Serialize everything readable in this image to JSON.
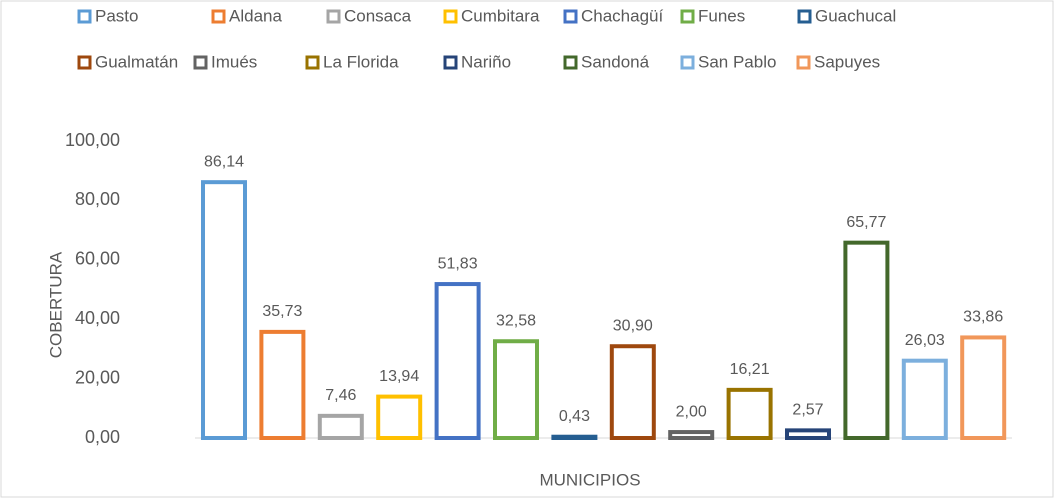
{
  "chart_data": {
    "type": "bar",
    "xlabel": "MUNICIPIOS",
    "ylabel": "COBERTURA",
    "ylim": [
      0,
      100
    ],
    "yticks": [
      {
        "value": 0,
        "label": "0,00"
      },
      {
        "value": 20,
        "label": "20,00"
      },
      {
        "value": 40,
        "label": "40,00"
      },
      {
        "value": 60,
        "label": "60,00"
      },
      {
        "value": 80,
        "label": "80,00"
      },
      {
        "value": 100,
        "label": "100,00"
      }
    ],
    "grid": false,
    "legend": "top",
    "series": [
      {
        "name": "Pasto",
        "color": "#5b9bd5",
        "values": [
          86.14
        ],
        "value_labels": [
          "86,14"
        ]
      },
      {
        "name": "Aldana",
        "color": "#ed7d31",
        "values": [
          35.73
        ],
        "value_labels": [
          "35,73"
        ]
      },
      {
        "name": "Consaca",
        "color": "#a5a5a5",
        "values": [
          7.46
        ],
        "value_labels": [
          "7,46"
        ]
      },
      {
        "name": "Cumbitara",
        "color": "#ffc000",
        "values": [
          13.94
        ],
        "value_labels": [
          "13,94"
        ]
      },
      {
        "name": "Chachagüí",
        "color": "#4472c4",
        "values": [
          51.83
        ],
        "value_labels": [
          "51,83"
        ]
      },
      {
        "name": "Funes",
        "color": "#70ad47",
        "values": [
          32.58
        ],
        "value_labels": [
          "32,58"
        ]
      },
      {
        "name": "Guachucal",
        "color": "#255e91",
        "values": [
          0.43
        ],
        "value_labels": [
          "0,43"
        ]
      },
      {
        "name": "Gualmatán",
        "color": "#9e480e",
        "values": [
          30.9
        ],
        "value_labels": [
          "30,90"
        ]
      },
      {
        "name": "Imués",
        "color": "#636363",
        "values": [
          2.0
        ],
        "value_labels": [
          "2,00"
        ]
      },
      {
        "name": "La Florida",
        "color": "#997300",
        "values": [
          16.21
        ],
        "value_labels": [
          "16,21"
        ]
      },
      {
        "name": "Nariño",
        "color": "#264478",
        "values": [
          2.57
        ],
        "value_labels": [
          "2,57"
        ]
      },
      {
        "name": "Sandoná",
        "color": "#43682b",
        "values": [
          65.77
        ],
        "value_labels": [
          "65,77"
        ]
      },
      {
        "name": "San Pablo",
        "color": "#7cafdd",
        "values": [
          26.03
        ],
        "value_labels": [
          "26,03"
        ]
      },
      {
        "name": "Sapuyes",
        "color": "#f1975a",
        "values": [
          33.86
        ],
        "value_labels": [
          "33,86"
        ]
      }
    ]
  }
}
